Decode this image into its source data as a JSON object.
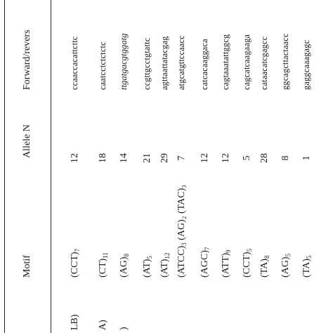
{
  "table": {
    "headers": {
      "motif": "Motif",
      "allele_n": "Allele N",
      "primer": "Forward/revers"
    },
    "rows": [
      {
        "locus": "LB)",
        "motif": "(CCT)",
        "motif_sub": "7",
        "motif_extra": "",
        "n": "12",
        "seq": "ccaaccacattcttc",
        "italic": false
      },
      {
        "locus": "A)",
        "motif": "(CT)",
        "motif_sub": "11",
        "motif_extra": "",
        "n": "18",
        "seq": "caatcctctctctc",
        "italic": false
      },
      {
        "locus": ")",
        "motif": "(AG)",
        "motif_sub": "8",
        "motif_extra": "",
        "n": "14",
        "seq": "ttgatgacgtggatg",
        "italic": true
      },
      {
        "locus": "",
        "motif": "(AT)",
        "motif_sub": "5",
        "motif_extra": "",
        "n": "21",
        "seq": "ccgttgcctgtattc",
        "italic": false
      },
      {
        "locus": "",
        "motif": "(AT)",
        "motif_sub": "12",
        "motif_extra": "",
        "n": "29",
        "seq": "agttaattatacgag",
        "italic": false
      },
      {
        "locus": "",
        "motif": "(ATCC)",
        "motif_sub": "3",
        "motif_extra": " (AG)₂ (TAC)₃",
        "n": "7",
        "seq": "atgcatgttccaacc",
        "italic": false
      },
      {
        "locus": "",
        "motif": "(AGC)",
        "motif_sub": "7",
        "motif_extra": "",
        "n": "12",
        "seq": "catcacaaggaca",
        "italic": false
      },
      {
        "locus": "",
        "motif": "(ATT)",
        "motif_sub": "9",
        "motif_extra": "",
        "n": "12",
        "seq": "cagtaaatattggcg",
        "italic": false
      },
      {
        "locus": "",
        "motif": "(CCT)",
        "motif_sub": "5",
        "motif_extra": "",
        "n": "5",
        "seq": "cagcatcaagaaga",
        "italic": false
      },
      {
        "locus": "",
        "motif": "(TA)",
        "motif_sub": "8",
        "motif_extra": "",
        "n": "28",
        "seq": "cataacatcgagcc",
        "italic": false
      },
      {
        "locus": "",
        "motif": "(AG)",
        "motif_sub": "5",
        "motif_extra": "",
        "n": "8",
        "seq": "ggcagcttactaacc",
        "italic": false
      },
      {
        "locus": "",
        "motif": "(TA)",
        "motif_sub": "5",
        "motif_extra": "",
        "n": "1",
        "seq": "gaggcaaagagc",
        "italic": false
      }
    ]
  }
}
